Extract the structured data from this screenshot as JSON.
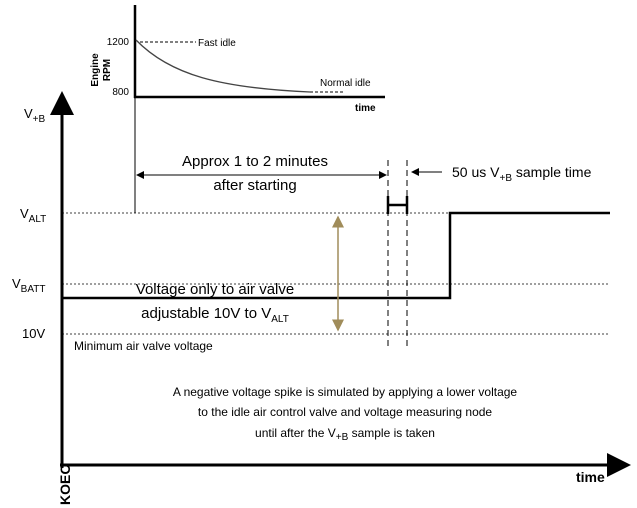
{
  "inset": {
    "y_ticks": [
      "1200",
      "800"
    ],
    "y_label": [
      "Engine",
      "RPM"
    ],
    "fast_idle": "Fast idle",
    "normal_idle": "Normal idle",
    "x_label": "time"
  },
  "main": {
    "y_label": {
      "main": "V",
      "sub": "+B"
    },
    "approx": [
      "Approx  1 to 2 minutes",
      "after starting"
    ],
    "sample": {
      "pre": "50 us V",
      "sub": "+B",
      "post": " sample time"
    },
    "levels": {
      "alt": {
        "main": "V",
        "sub": "ALT"
      },
      "batt": {
        "main": "V",
        "sub": "BATT"
      },
      "ten": "10V"
    },
    "voltage_note": {
      "line1": "Voltage only to air valve",
      "line2_pre": "adjustable 10V to V",
      "line2_sub": "ALT"
    },
    "minimum": "Minimum air valve voltage",
    "paragraph": {
      "line1": "A negative voltage spike is simulated by applying a lower voltage",
      "line2": "to the idle air control valve and voltage measuring node",
      "line3_pre": "until after the V",
      "line3_sub": "+B",
      "line3_post": " sample is taken"
    },
    "x_origin": "KOEO",
    "x_label": "time"
  }
}
